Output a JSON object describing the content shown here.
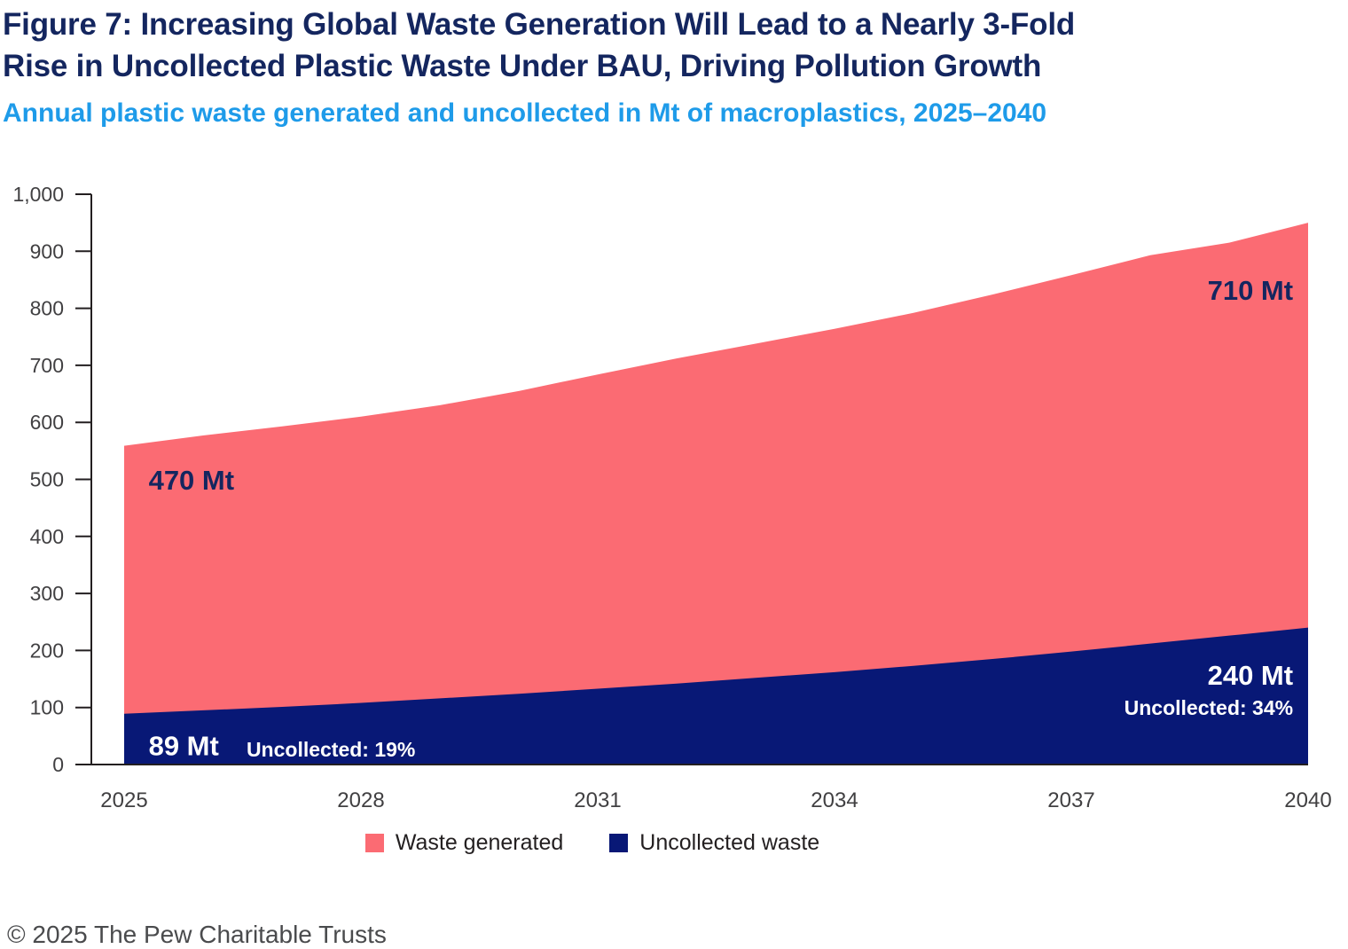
{
  "header": {
    "title_line1": "Figure 7: Increasing Global Waste Generation Will Lead to a Nearly 3-Fold",
    "title_line2": "Rise in Uncollected Plastic Waste Under BAU, Driving Pollution Growth",
    "subtitle": "Annual plastic waste generated and uncollected in Mt of macroplastics, 2025–2040"
  },
  "legend": {
    "items": [
      {
        "label": "Waste generated",
        "color": "#FB6B73"
      },
      {
        "label": "Uncollected waste",
        "color": "#081876"
      }
    ]
  },
  "footer": {
    "copyright": "© 2025 The Pew Charitable Trusts"
  },
  "colors": {
    "title_navy": "#14265F",
    "subtitle_blue": "#1E9BE9",
    "waste_generated_pink": "#FB6B73",
    "uncollected_navy": "#081876",
    "axis": "#231F20",
    "tick_text": "#414042"
  },
  "chart_data": {
    "type": "area",
    "stacked": true,
    "title": "Annual plastic waste generated and uncollected in Mt of macroplastics, 2025-2040",
    "xlabel": "",
    "ylabel": "Mt of macroplastics",
    "x": [
      2025,
      2026,
      2027,
      2028,
      2029,
      2030,
      2031,
      2032,
      2033,
      2034,
      2035,
      2036,
      2037,
      2038,
      2039,
      2040
    ],
    "series": [
      {
        "name": "Waste generated",
        "color": "#FB6B73",
        "values": [
          470,
          482,
          492,
          502,
          514,
          531,
          551,
          570,
          586,
          602,
          619,
          639,
          660,
          681,
          689,
          710
        ]
      },
      {
        "name": "Uncollected waste",
        "color": "#081876",
        "values": [
          89,
          95,
          101,
          108,
          116,
          124,
          133,
          142,
          152,
          162,
          173,
          185,
          198,
          212,
          226,
          240
        ]
      }
    ],
    "key_values": {
      "waste_generated_2025_mt": 470,
      "waste_generated_2040_mt": 710,
      "uncollected_2025_mt": 89,
      "uncollected_2040_mt": 240,
      "uncollected_share_2025": "19%",
      "uncollected_share_2040": "34%"
    },
    "ylim": [
      0,
      1000
    ],
    "ytick_step": 100,
    "ytick_top_label": "1,000",
    "xticks": [
      2025,
      2028,
      2031,
      2034,
      2037,
      2040
    ],
    "grid": false,
    "legend_position": "bottom",
    "annotations": [
      {
        "text": "470 Mt",
        "x_year": 2025.31,
        "y_mt": 482,
        "align": "start",
        "style": "big-navy"
      },
      {
        "text": "89 Mt",
        "x_year": 2025.31,
        "y_mt": 16,
        "align": "start",
        "style": "big-white"
      },
      {
        "text": "Uncollected: 19%",
        "x_year": 2026.55,
        "y_mt": 14,
        "align": "start",
        "style": "small-white"
      },
      {
        "text": "710 Mt",
        "x_year": 2039.81,
        "y_mt": 815,
        "align": "end",
        "style": "big-navy"
      },
      {
        "text": "240 Mt",
        "x_year": 2039.81,
        "y_mt": 140,
        "align": "end",
        "style": "big-white"
      },
      {
        "text": "Uncollected: 34%",
        "x_year": 2039.81,
        "y_mt": 87,
        "align": "end",
        "style": "small-white"
      }
    ]
  }
}
